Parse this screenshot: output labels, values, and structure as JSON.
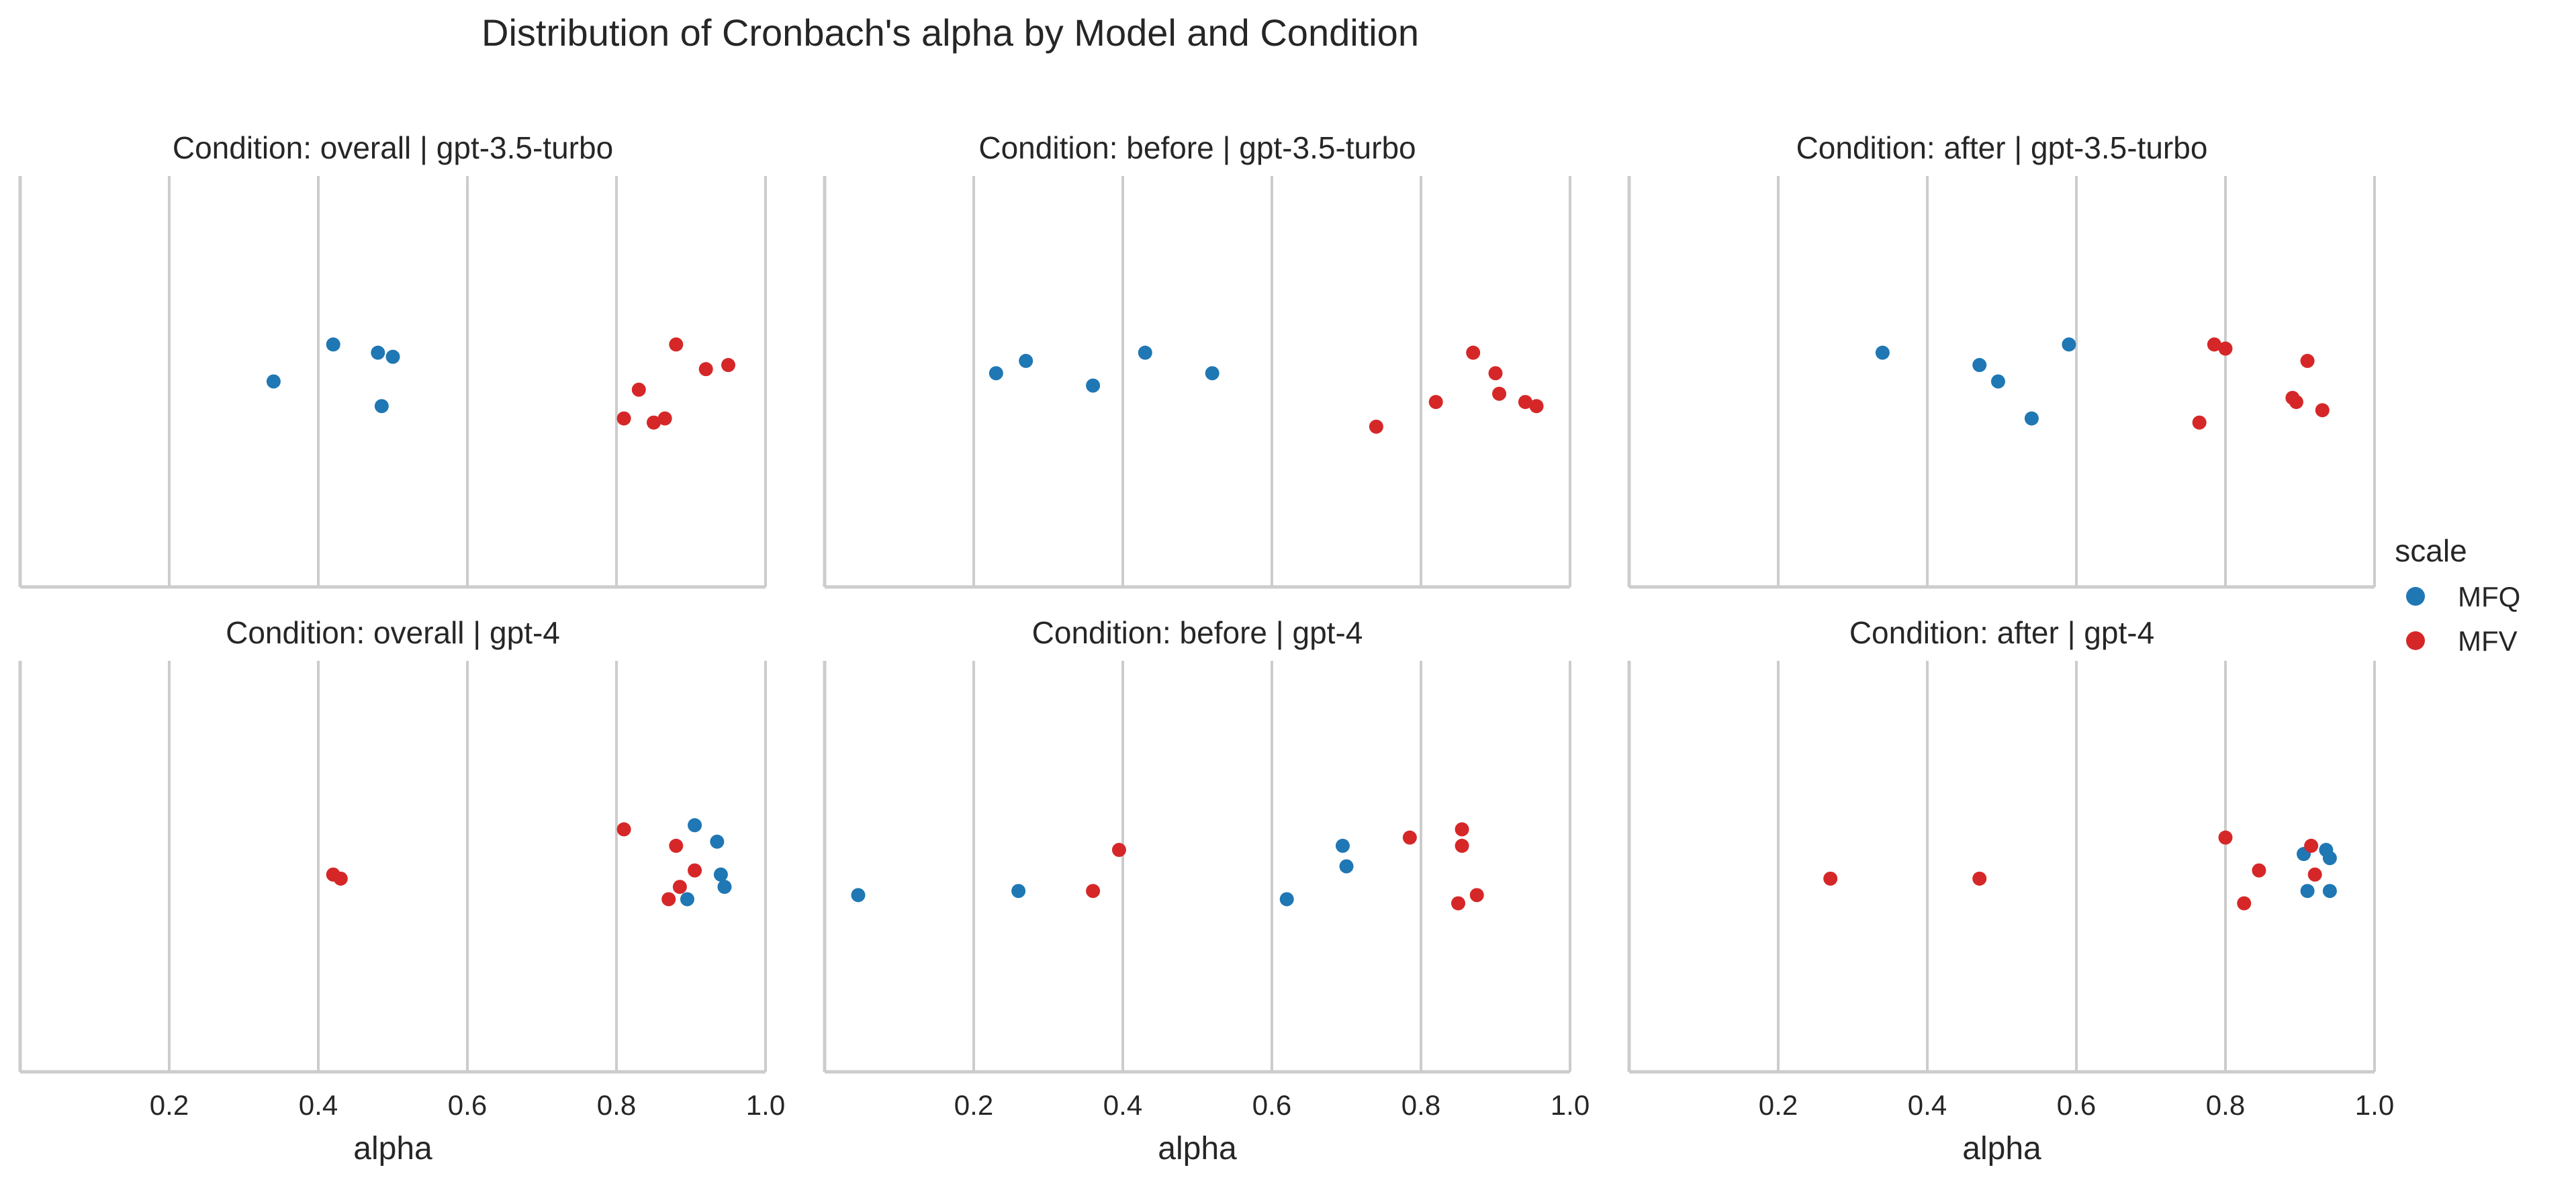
{
  "chart_data": {
    "type": "scatter",
    "title": "Distribution of Cronbach's alpha by Model and Condition",
    "xlabel": "alpha",
    "xlim": [
      0.0,
      1.0
    ],
    "xticks": [
      0.2,
      0.4,
      0.6,
      0.8,
      1.0
    ],
    "xtick_labels": [
      "0.2",
      "0.4",
      "0.6",
      "0.8",
      "1.0"
    ],
    "grid": "vertical",
    "legend": {
      "title": "scale",
      "placement": "right",
      "entries": [
        {
          "name": "MFQ",
          "color": "#1f77b4"
        },
        {
          "name": "MFV",
          "color": "#d62728"
        }
      ]
    },
    "panels": [
      {
        "title": "Condition: overall | gpt-3.5-turbo",
        "condition": "overall",
        "model": "gpt-3.5-turbo",
        "series": [
          {
            "name": "MFQ",
            "x": [
              0.34,
              0.42,
              0.48,
              0.485,
              0.5
            ]
          },
          {
            "name": "MFV",
            "x": [
              0.81,
              0.83,
              0.85,
              0.865,
              0.88,
              0.92,
              0.95
            ]
          }
        ]
      },
      {
        "title": "Condition: before | gpt-3.5-turbo",
        "condition": "before",
        "model": "gpt-3.5-turbo",
        "series": [
          {
            "name": "MFQ",
            "x": [
              0.23,
              0.27,
              0.36,
              0.43,
              0.52
            ]
          },
          {
            "name": "MFV",
            "x": [
              0.74,
              0.82,
              0.87,
              0.9,
              0.905,
              0.94,
              0.955
            ]
          }
        ]
      },
      {
        "title": "Condition: after | gpt-3.5-turbo",
        "condition": "after",
        "model": "gpt-3.5-turbo",
        "series": [
          {
            "name": "MFQ",
            "x": [
              0.34,
              0.47,
              0.495,
              0.54,
              0.59
            ]
          },
          {
            "name": "MFV",
            "x": [
              0.765,
              0.785,
              0.8,
              0.89,
              0.895,
              0.91,
              0.93
            ]
          }
        ]
      },
      {
        "title": "Condition: overall | gpt-4",
        "condition": "overall",
        "model": "gpt-4",
        "series": [
          {
            "name": "MFQ",
            "x": [
              0.895,
              0.905,
              0.935,
              0.94,
              0.945
            ]
          },
          {
            "name": "MFV",
            "x": [
              0.42,
              0.43,
              0.81,
              0.87,
              0.88,
              0.885,
              0.905
            ]
          }
        ]
      },
      {
        "title": "Condition: before | gpt-4",
        "condition": "before",
        "model": "gpt-4",
        "series": [
          {
            "name": "MFQ",
            "x": [
              0.045,
              0.26,
              0.62,
              0.695,
              0.7
            ]
          },
          {
            "name": "MFV",
            "x": [
              0.36,
              0.395,
              0.785,
              0.85,
              0.855,
              0.855,
              0.875
            ]
          }
        ]
      },
      {
        "title": "Condition: after | gpt-4",
        "condition": "after",
        "model": "gpt-4",
        "series": [
          {
            "name": "MFQ",
            "x": [
              0.905,
              0.91,
              0.935,
              0.94,
              0.94
            ]
          },
          {
            "name": "MFV",
            "x": [
              0.27,
              0.47,
              0.8,
              0.825,
              0.845,
              0.915,
              0.92
            ]
          }
        ]
      }
    ]
  }
}
